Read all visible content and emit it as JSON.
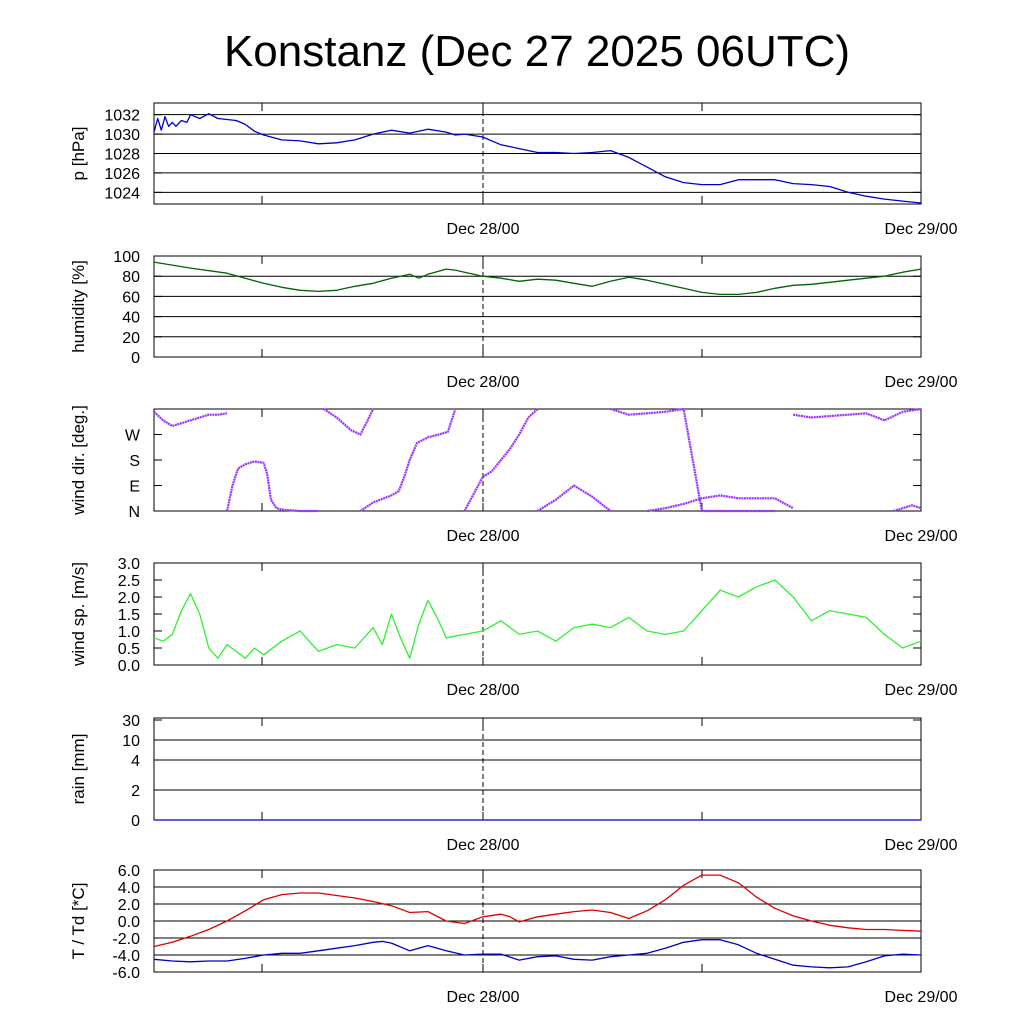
{
  "title": "Konstanz (Dec 27 2025 06UTC)",
  "x_labels": [
    "Dec 28/00",
    "Dec 29/00"
  ],
  "chart_data": [
    {
      "type": "line",
      "id": "pressure",
      "ylabel": "p [hPa]",
      "ylim": [
        1022.8,
        1033.2
      ],
      "yticks": [
        1024,
        1026,
        1028,
        1030,
        1032
      ],
      "tick_labels": [
        "1024",
        "1026",
        "1028",
        "1030",
        "1032"
      ],
      "gridlines": [
        1024,
        1026,
        1028,
        1030,
        1032,
        1033.2
      ],
      "xlim": [
        0,
        42
      ],
      "series": [
        {
          "name": "p",
          "color": "#0000cc",
          "x": [
            0,
            0.2,
            0.4,
            0.6,
            0.8,
            1.0,
            1.2,
            1.5,
            1.8,
            2.0,
            2.5,
            3,
            3.5,
            4,
            4.5,
            5,
            5.5,
            6,
            7,
            8,
            9,
            10,
            11,
            12,
            13,
            14,
            15,
            16,
            16.5,
            17,
            18,
            19,
            20,
            21,
            22,
            23,
            24,
            25,
            26,
            27,
            28,
            29,
            30,
            31,
            32,
            33,
            34,
            35,
            36,
            37,
            38,
            39,
            40,
            41,
            42
          ],
          "values": [
            1030.2,
            1031.6,
            1030.4,
            1031.8,
            1030.8,
            1031.2,
            1030.8,
            1031.4,
            1031.2,
            1032.0,
            1031.6,
            1032.1,
            1031.6,
            1031.5,
            1031.4,
            1031.0,
            1030.3,
            1029.9,
            1029.4,
            1029.3,
            1029.0,
            1029.1,
            1029.4,
            1030.0,
            1030.4,
            1030.1,
            1030.5,
            1030.2,
            1029.9,
            1030.0,
            1029.7,
            1028.9,
            1028.5,
            1028.1,
            1028.1,
            1028.0,
            1028.1,
            1028.3,
            1027.6,
            1026.6,
            1025.6,
            1025.0,
            1024.8,
            1024.8,
            1025.3,
            1025.3,
            1025.3,
            1024.9,
            1024.8,
            1024.6,
            1024.0,
            1023.6,
            1023.3,
            1023.1,
            1022.9
          ]
        }
      ]
    },
    {
      "type": "line",
      "id": "humidity",
      "ylabel": "humidity [%]",
      "ylim": [
        0,
        100
      ],
      "yticks": [
        0,
        20,
        40,
        60,
        80,
        100
      ],
      "tick_labels": [
        "0",
        "20",
        "40",
        "60",
        "80",
        "100"
      ],
      "gridlines": [
        20,
        40,
        60,
        80
      ],
      "xlim": [
        0,
        42
      ],
      "series": [
        {
          "name": "humidity",
          "color": "#006400",
          "x": [
            0,
            2,
            4,
            6,
            7,
            8,
            9,
            10,
            11,
            12,
            13,
            14,
            14.5,
            15,
            16,
            16.5,
            17,
            18,
            19,
            20,
            21,
            22,
            23,
            24,
            25,
            26,
            27,
            28,
            29,
            30,
            31,
            32,
            33,
            34,
            35,
            36,
            37,
            38,
            39,
            40,
            41,
            42
          ],
          "values": [
            94,
            88,
            83,
            73,
            69,
            66,
            65,
            66,
            70,
            73,
            78,
            82,
            78,
            82,
            87,
            86,
            84,
            80,
            78,
            75,
            77,
            76,
            73,
            70,
            75,
            79,
            76,
            72,
            68,
            64,
            62,
            62,
            64,
            68,
            71,
            72,
            74,
            76,
            78,
            80,
            84,
            87
          ]
        }
      ]
    },
    {
      "type": "scatter",
      "id": "wind_direction",
      "ylabel": "wind dir. [deg.]",
      "ylim": [
        0,
        360
      ],
      "yticks": [
        0,
        90,
        180,
        270
      ],
      "tick_labels": [
        "N",
        "E",
        "S",
        "W"
      ],
      "gridlines": [],
      "xlim": [
        0,
        42
      ],
      "series": [
        {
          "name": "seg1",
          "color": "#9933ff",
          "x": [
            0,
            0.5,
            1,
            1.5,
            2,
            2.5,
            3,
            3.5,
            4
          ],
          "values": [
            350,
            320,
            300,
            310,
            320,
            330,
            340,
            340,
            345
          ]
        },
        {
          "name": "seg2",
          "color": "#9933ff",
          "x": [
            4,
            4.3,
            4.6,
            5,
            5.5,
            6,
            6.2,
            6.4,
            6.7,
            7,
            8,
            9
          ],
          "values": [
            0,
            90,
            150,
            165,
            175,
            170,
            130,
            40,
            10,
            5,
            0,
            0
          ]
        },
        {
          "name": "seg3",
          "color": "#9933ff",
          "x": [
            9.3,
            10,
            10.8,
            11.3,
            11.7,
            12
          ],
          "values": [
            360,
            330,
            285,
            270,
            320,
            360
          ]
        },
        {
          "name": "seg4",
          "color": "#9933ff",
          "x": [
            11.3,
            12,
            13,
            13.4,
            13.7,
            14,
            14.4,
            15,
            15.6,
            16.1,
            16.5
          ],
          "values": [
            0,
            30,
            55,
            70,
            120,
            180,
            240,
            260,
            270,
            280,
            360
          ]
        },
        {
          "name": "seg5",
          "color": "#9933ff",
          "x": [
            17,
            17.5,
            18,
            18.5,
            19,
            19.5,
            20,
            20.5,
            21
          ],
          "values": [
            0,
            60,
            120,
            140,
            180,
            220,
            270,
            330,
            360
          ]
        },
        {
          "name": "seg6",
          "color": "#9933ff",
          "x": [
            21,
            22,
            23,
            24,
            25
          ],
          "values": [
            0,
            40,
            90,
            50,
            0
          ]
        },
        {
          "name": "seg7",
          "color": "#9933ff",
          "x": [
            25,
            26,
            27,
            28,
            29,
            30,
            31,
            32,
            33,
            34
          ],
          "values": [
            360,
            340,
            345,
            350,
            360,
            0,
            0,
            0,
            0,
            0
          ]
        },
        {
          "name": "seg8",
          "color": "#9933ff",
          "x": [
            27,
            28,
            29,
            30,
            31,
            32,
            33,
            34,
            35
          ],
          "values": [
            0,
            10,
            25,
            45,
            55,
            45,
            45,
            45,
            10
          ]
        },
        {
          "name": "seg9",
          "color": "#9933ff",
          "x": [
            35,
            36,
            37,
            38,
            39,
            40,
            41,
            42
          ],
          "values": [
            340,
            330,
            335,
            340,
            345,
            320,
            350,
            360
          ]
        },
        {
          "name": "seg10",
          "color": "#9933ff",
          "x": [
            40.5,
            41,
            41.5,
            42
          ],
          "values": [
            0,
            10,
            20,
            10
          ]
        }
      ]
    },
    {
      "type": "line",
      "id": "wind_speed",
      "ylabel": "wind sp. [m/s]",
      "ylim": [
        0,
        3
      ],
      "yticks": [
        0,
        0.5,
        1,
        1.5,
        2,
        2.5,
        3
      ],
      "tick_labels": [
        "0.0",
        "0.5",
        "1.0",
        "1.5",
        "2.0",
        "2.5",
        "3.0"
      ],
      "gridlines": [],
      "xlim": [
        0,
        42
      ],
      "series": [
        {
          "name": "wind speed",
          "color": "#33ee33",
          "x": [
            0,
            0.5,
            1,
            1.5,
            2,
            2.5,
            3,
            3.5,
            4,
            4.5,
            5,
            5.5,
            6,
            7,
            8,
            9,
            10,
            11,
            12,
            12.5,
            13,
            13.5,
            14,
            14.5,
            15,
            15.5,
            16,
            17,
            18,
            19,
            20,
            21,
            22,
            23,
            24,
            25,
            26,
            27,
            28,
            29,
            30,
            31,
            32,
            33,
            34,
            35,
            36,
            37,
            38,
            39,
            40,
            41,
            42
          ],
          "values": [
            0.8,
            0.7,
            0.9,
            1.6,
            2.1,
            1.5,
            0.5,
            0.2,
            0.6,
            0.4,
            0.2,
            0.5,
            0.3,
            0.7,
            1.0,
            0.4,
            0.6,
            0.5,
            1.1,
            0.6,
            1.5,
            0.8,
            0.2,
            1.2,
            1.9,
            1.4,
            0.8,
            0.9,
            1.0,
            1.3,
            0.9,
            1.0,
            0.7,
            1.1,
            1.2,
            1.1,
            1.4,
            1.0,
            0.9,
            1.0,
            1.6,
            2.2,
            2.0,
            2.3,
            2.5,
            2.0,
            1.3,
            1.6,
            1.5,
            1.4,
            0.9,
            0.5,
            0.7
          ]
        }
      ]
    },
    {
      "type": "line",
      "id": "rain",
      "ylabel": "rain [mm]",
      "ylim": [
        0,
        30
      ],
      "yticks": [
        0,
        2,
        4,
        10,
        30
      ],
      "tick_labels": [
        "0",
        "2",
        "4",
        "10",
        "30"
      ],
      "gridlines": [
        2,
        4,
        10
      ],
      "xlim": [
        0,
        42
      ],
      "series": [
        {
          "name": "rain",
          "color": "#0000cc",
          "x": [
            0,
            42
          ],
          "values": [
            0,
            0
          ]
        }
      ]
    },
    {
      "type": "line",
      "id": "temperature",
      "ylabel": "T / Td [*C]",
      "ylim": [
        -6,
        6
      ],
      "yticks": [
        -6,
        -4,
        -2,
        0,
        2,
        4,
        6
      ],
      "tick_labels": [
        "-6.0",
        "-4.0",
        "-2.0",
        "0.0",
        "2.0",
        "4.0",
        "6.0"
      ],
      "gridlines": [
        -4,
        -2,
        0,
        2,
        4,
        6
      ],
      "xlim": [
        0,
        42
      ],
      "series": [
        {
          "name": "T",
          "color": "#dd0000",
          "x": [
            0,
            1,
            2,
            3,
            4,
            5,
            6,
            7,
            8,
            9,
            10,
            11,
            12,
            13,
            14,
            15,
            16,
            17,
            18,
            19,
            19.5,
            20,
            21,
            22,
            23,
            24,
            25,
            26,
            27,
            28,
            29,
            30,
            31,
            32,
            33,
            34,
            35,
            36,
            37,
            38,
            39,
            40,
            41,
            42
          ],
          "values": [
            -3.0,
            -2.5,
            -1.8,
            -1.0,
            0.0,
            1.2,
            2.5,
            3.1,
            3.3,
            3.3,
            3.0,
            2.7,
            2.3,
            1.8,
            1.0,
            1.1,
            0.0,
            -0.3,
            0.5,
            0.8,
            0.5,
            -0.1,
            0.5,
            0.8,
            1.1,
            1.3,
            1.0,
            0.3,
            1.2,
            2.5,
            4.2,
            5.4,
            5.4,
            4.5,
            2.8,
            1.5,
            0.6,
            0.0,
            -0.5,
            -0.8,
            -1.0,
            -1.0,
            -1.1,
            -1.2
          ]
        },
        {
          "name": "Td",
          "color": "#0000cc",
          "x": [
            0,
            1,
            2,
            3,
            4,
            5,
            6,
            7,
            8,
            9,
            10,
            11,
            12,
            12.5,
            13,
            14,
            15,
            16,
            17,
            18,
            19,
            20,
            21,
            22,
            23,
            24,
            25,
            26,
            27,
            28,
            29,
            30,
            31,
            32,
            33,
            34,
            35,
            36,
            37,
            38,
            39,
            40,
            41,
            42
          ],
          "values": [
            -4.5,
            -4.7,
            -4.8,
            -4.7,
            -4.7,
            -4.4,
            -4.0,
            -3.8,
            -3.8,
            -3.5,
            -3.2,
            -2.9,
            -2.5,
            -2.4,
            -2.6,
            -3.5,
            -2.9,
            -3.5,
            -4.0,
            -3.9,
            -3.9,
            -4.6,
            -4.2,
            -4.1,
            -4.5,
            -4.6,
            -4.2,
            -4.0,
            -3.8,
            -3.2,
            -2.5,
            -2.2,
            -2.2,
            -2.8,
            -3.8,
            -4.5,
            -5.2,
            -5.4,
            -5.5,
            -5.4,
            -4.8,
            -4.1,
            -3.9,
            -4.0
          ]
        }
      ]
    }
  ]
}
